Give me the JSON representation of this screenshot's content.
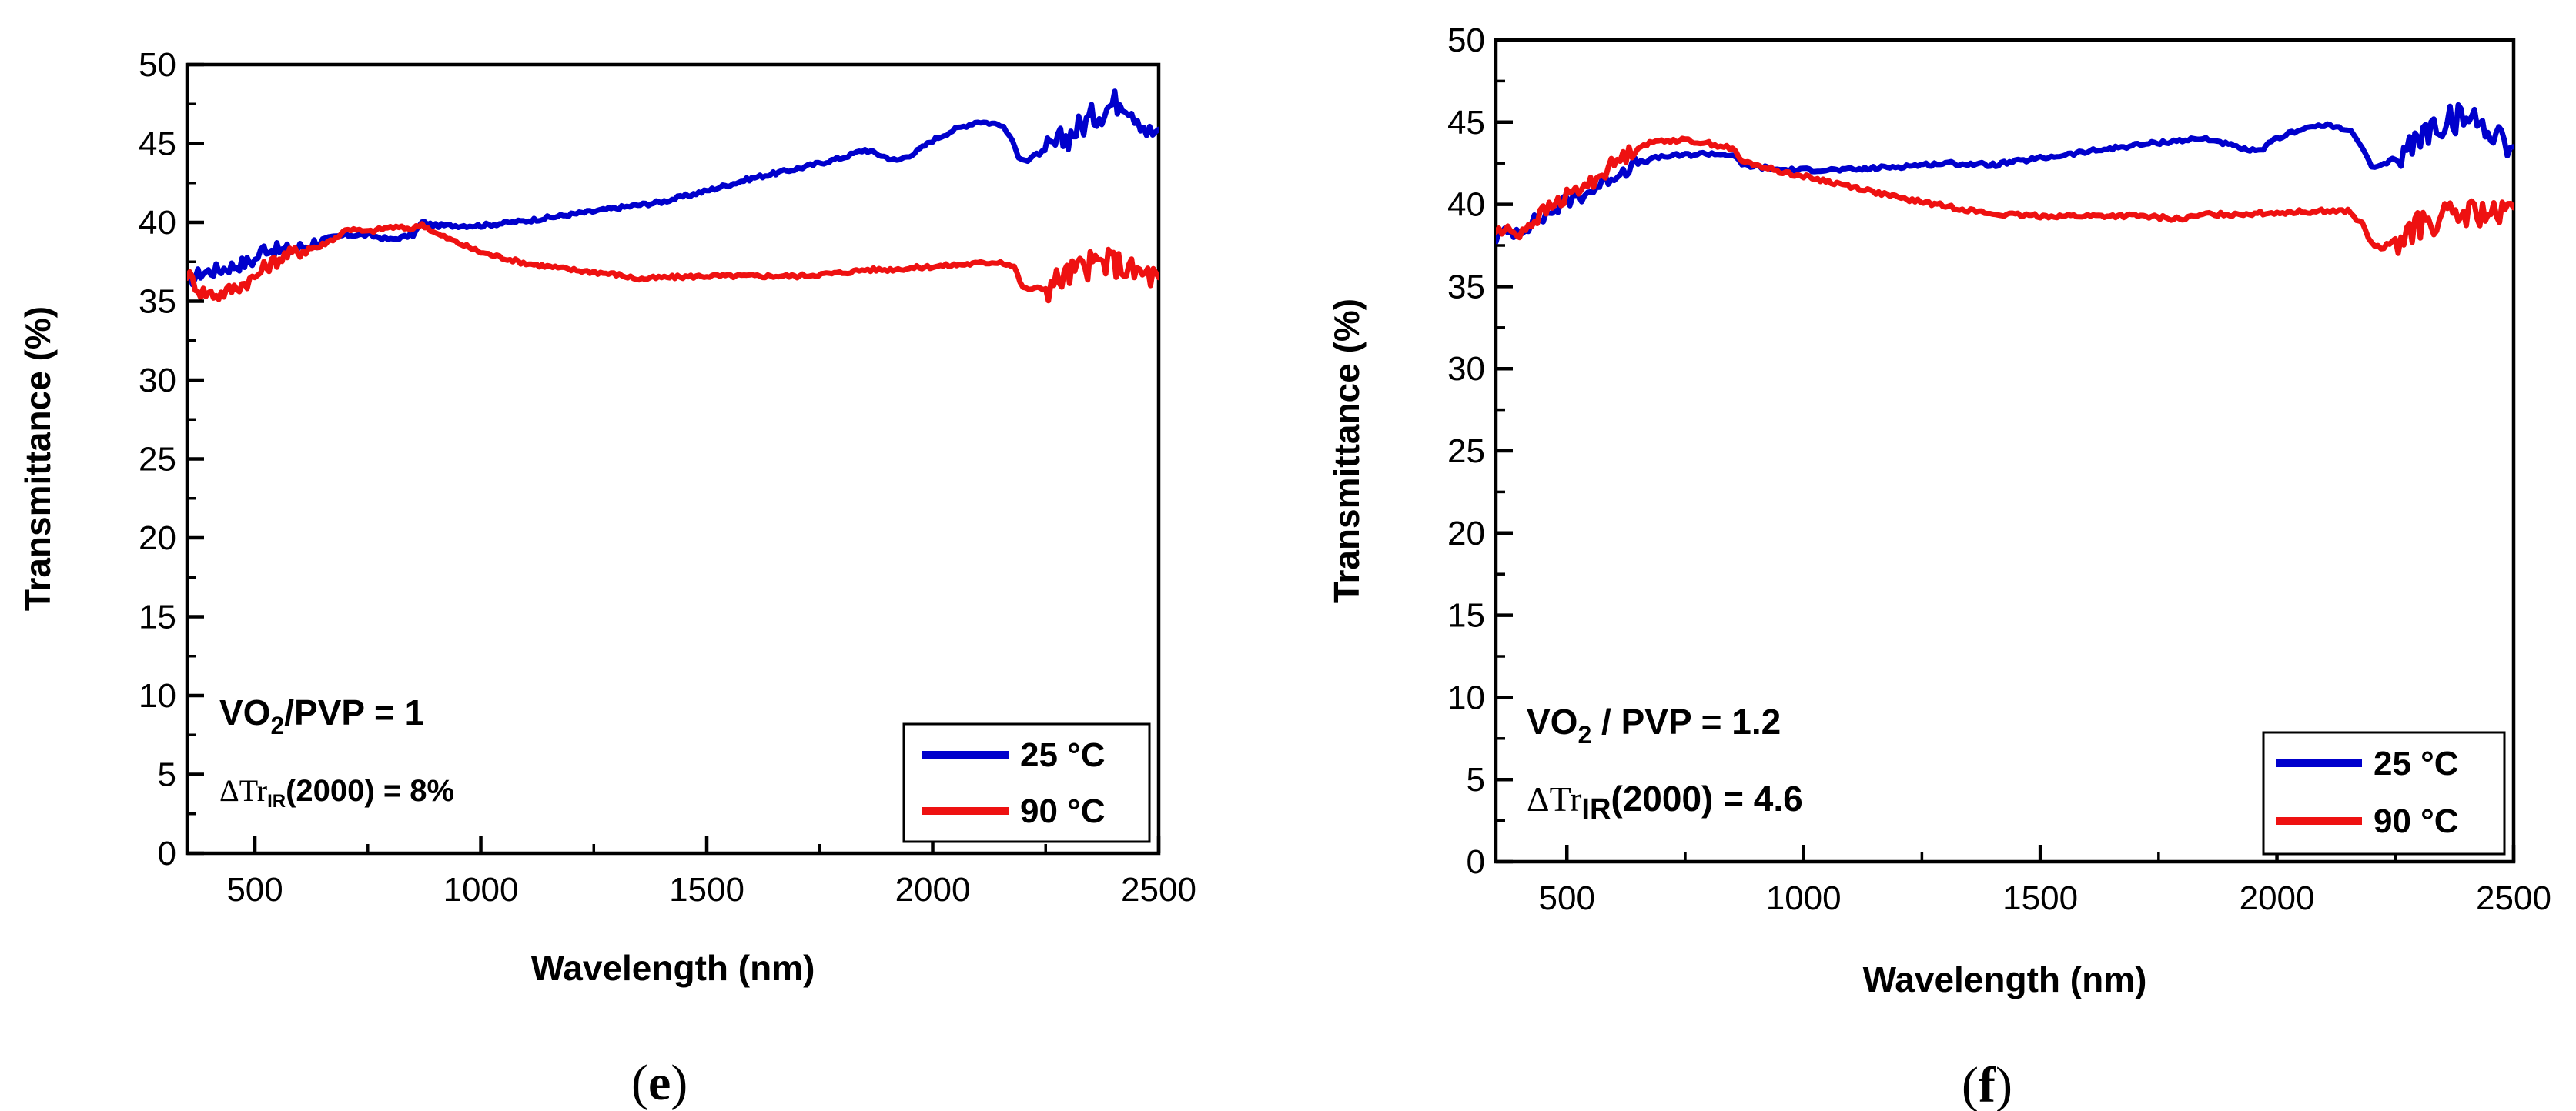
{
  "chart_data": [
    {
      "type": "line",
      "panel_label": "e",
      "title": "",
      "xlabel": "Wavelength (nm)",
      "ylabel": "Transmittance (%)",
      "xlim": [
        350,
        2500
      ],
      "ylim": [
        0,
        50
      ],
      "xticks": [
        500,
        1000,
        1500,
        2000,
        2500
      ],
      "yticks": [
        0,
        5,
        10,
        15,
        20,
        25,
        30,
        35,
        40,
        45,
        50
      ],
      "grid": false,
      "legend_position": "bottom-right",
      "annotations": {
        "ratio": {
          "prefix": "VO",
          "sub": "2",
          "suffix": "/PVP = 1"
        },
        "delta": {
          "prefix": "ΔTr",
          "sub": "IR",
          "suffix": "(2000) = 8%"
        }
      },
      "series": [
        {
          "name": "25 °C",
          "color": "#0000cc",
          "x": [
            350,
            380,
            420,
            460,
            500,
            520,
            560,
            600,
            650,
            700,
            750,
            800,
            850,
            870,
            900,
            950,
            1000,
            1100,
            1200,
            1300,
            1400,
            1500,
            1600,
            1700,
            1800,
            1850,
            1880,
            1920,
            1960,
            2000,
            2050,
            2100,
            2150,
            2170,
            2190,
            2210,
            2230,
            2260,
            2300,
            2340,
            2380,
            2420,
            2440,
            2460,
            2480,
            2500
          ],
          "y": [
            36.2,
            36.8,
            37.0,
            37.3,
            37.6,
            38.4,
            38.2,
            38.4,
            38.9,
            39.2,
            39.2,
            38.9,
            39.2,
            40.0,
            39.8,
            39.8,
            39.8,
            40.1,
            40.5,
            40.9,
            41.3,
            42.0,
            42.8,
            43.4,
            44.1,
            44.6,
            44.3,
            43.9,
            44.4,
            45.2,
            45.9,
            46.4,
            46.2,
            45.5,
            44.2,
            43.9,
            44.3,
            44.6,
            45.5,
            46.4,
            47.2,
            47.9,
            47.3,
            46.6,
            45.6,
            45.9
          ]
        },
        {
          "name": "90 °C",
          "color": "#ee1111",
          "x": [
            350,
            380,
            420,
            460,
            500,
            520,
            560,
            600,
            650,
            690,
            700,
            750,
            800,
            850,
            870,
            900,
            950,
            1000,
            1100,
            1200,
            1300,
            1350,
            1400,
            1500,
            1600,
            1700,
            1800,
            1850,
            1900,
            2000,
            2100,
            2150,
            2180,
            2200,
            2220,
            2250,
            2280,
            2320,
            2360,
            2400,
            2440,
            2470,
            2500
          ],
          "y": [
            36.8,
            35.6,
            35.4,
            35.9,
            36.5,
            37.1,
            37.8,
            38.2,
            38.6,
            39.2,
            39.6,
            39.4,
            39.7,
            39.6,
            39.9,
            39.3,
            38.7,
            38.1,
            37.4,
            37.0,
            36.7,
            36.4,
            36.5,
            36.6,
            36.6,
            36.6,
            36.8,
            37.0,
            37.0,
            37.2,
            37.4,
            37.5,
            37.2,
            35.8,
            35.8,
            35.8,
            36.4,
            37.0,
            37.4,
            37.5,
            36.9,
            36.7,
            36.5
          ]
        }
      ]
    },
    {
      "type": "line",
      "panel_label": "f",
      "title": "",
      "xlabel": "Wavelength (nm)",
      "ylabel": "Transmittance (%)",
      "xlim": [
        350,
        2500
      ],
      "ylim": [
        0,
        50
      ],
      "xticks": [
        500,
        1000,
        1500,
        2000,
        2500
      ],
      "yticks": [
        0,
        5,
        10,
        15,
        20,
        25,
        30,
        35,
        40,
        45,
        50
      ],
      "grid": false,
      "legend_position": "bottom-right",
      "annotations": {
        "ratio": {
          "prefix": "VO",
          "sub": "2",
          "suffix": " / PVP = 1.2"
        },
        "delta": {
          "prefix": "ΔTr",
          "sub": "IR",
          "suffix": "(2000) = 4.6"
        }
      },
      "series": [
        {
          "name": "25 °C",
          "color": "#0000cc",
          "x": [
            350,
            400,
            450,
            500,
            550,
            600,
            650,
            700,
            750,
            800,
            850,
            870,
            900,
            950,
            1000,
            1100,
            1200,
            1300,
            1400,
            1500,
            1600,
            1700,
            1800,
            1850,
            1880,
            1920,
            1960,
            2000,
            2050,
            2100,
            2150,
            2180,
            2200,
            2220,
            2250,
            2280,
            2320,
            2360,
            2400,
            2440,
            2480,
            2500
          ],
          "y": [
            38.0,
            38.5,
            39.2,
            40.2,
            40.8,
            41.8,
            42.5,
            42.9,
            43.0,
            43.1,
            43.0,
            42.4,
            42.3,
            42.1,
            42.1,
            42.1,
            42.3,
            42.5,
            42.4,
            42.8,
            43.2,
            43.6,
            43.9,
            44.0,
            43.8,
            43.4,
            43.2,
            44.0,
            44.6,
            44.8,
            44.6,
            43.5,
            42.2,
            42.3,
            42.8,
            43.5,
            44.5,
            45.1,
            45.3,
            44.8,
            44.0,
            43.5
          ]
        },
        {
          "name": "90 °C",
          "color": "#ee1111",
          "x": [
            350,
            400,
            450,
            500,
            550,
            600,
            650,
            700,
            750,
            800,
            850,
            870,
            900,
            950,
            1000,
            1100,
            1200,
            1300,
            1400,
            1500,
            1600,
            1700,
            1800,
            1850,
            1900,
            2000,
            2100,
            2150,
            2180,
            2200,
            2220,
            2250,
            2280,
            2320,
            2360,
            2400,
            2440,
            2470,
            2500
          ],
          "y": [
            38.4,
            38.3,
            39.5,
            40.5,
            41.3,
            42.5,
            43.5,
            43.9,
            43.9,
            43.7,
            43.4,
            42.6,
            42.4,
            42.0,
            41.7,
            41.1,
            40.4,
            39.9,
            39.4,
            39.3,
            39.3,
            39.3,
            39.1,
            39.4,
            39.4,
            39.5,
            39.6,
            39.6,
            38.8,
            37.6,
            37.3,
            37.8,
            38.4,
            38.9,
            39.2,
            39.4,
            39.5,
            39.1,
            39.8
          ]
        }
      ]
    }
  ]
}
